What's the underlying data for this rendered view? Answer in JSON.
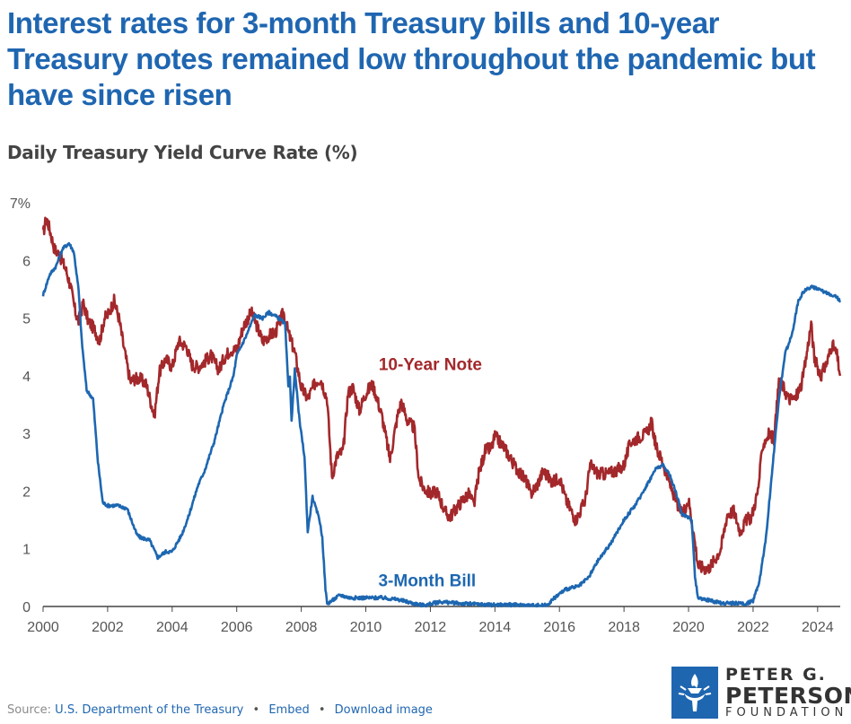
{
  "title": "Interest rates for 3-month Treasury bills and 10-year Treasury notes remained low throughout the pandemic but have since risen",
  "subtitle": "Daily Treasury Yield Curve Rate (%)",
  "footer": {
    "source_label": "Source:",
    "source_link": "U.S. Department of the Treasury",
    "embed": "Embed",
    "download": "Download image",
    "separator": "•"
  },
  "logo": {
    "line1": "PETER G.",
    "line2": "PETERSON",
    "line3": "FOUNDATION"
  },
  "chart_data": {
    "type": "line",
    "title": "Daily Treasury Yield Curve Rate (%)",
    "xlabel": "",
    "ylabel": "",
    "xlim": [
      2000,
      2024.7
    ],
    "ylim": [
      0,
      7
    ],
    "x_ticks": [
      2000,
      2002,
      2004,
      2006,
      2008,
      2010,
      2012,
      2014,
      2016,
      2018,
      2020,
      2022,
      2024
    ],
    "x_tick_labels": [
      "2000",
      "2002",
      "2004",
      "2006",
      "2008",
      "2010",
      "2012",
      "2014",
      "2016",
      "2018",
      "2020",
      "2022",
      "2024"
    ],
    "y_ticks": [
      0,
      1,
      2,
      3,
      4,
      5,
      6,
      7
    ],
    "y_tick_labels": [
      "0",
      "1",
      "2",
      "3",
      "4",
      "5",
      "6",
      "7%"
    ],
    "grid": false,
    "series": [
      {
        "name": "10-Year Note",
        "color": "#a3282b",
        "x": [
          2000.0,
          2000.1,
          2000.2,
          2000.35,
          2000.5,
          2000.7,
          2000.85,
          2001.0,
          2001.1,
          2001.25,
          2001.4,
          2001.6,
          2001.75,
          2001.9,
          2002.0,
          2002.2,
          2002.35,
          2002.5,
          2002.7,
          2002.85,
          2003.0,
          2003.2,
          2003.45,
          2003.6,
          2003.8,
          2004.0,
          2004.2,
          2004.45,
          2004.6,
          2004.8,
          2005.0,
          2005.2,
          2005.45,
          2005.6,
          2005.8,
          2006.0,
          2006.2,
          2006.45,
          2006.6,
          2006.8,
          2007.0,
          2007.2,
          2007.45,
          2007.6,
          2007.8,
          2008.0,
          2008.2,
          2008.45,
          2008.6,
          2008.8,
          2008.95,
          2009.1,
          2009.3,
          2009.45,
          2009.6,
          2009.8,
          2010.0,
          2010.2,
          2010.3,
          2010.5,
          2010.75,
          2010.9,
          2011.0,
          2011.1,
          2011.3,
          2011.5,
          2011.65,
          2011.8,
          2012.0,
          2012.2,
          2012.45,
          2012.6,
          2012.8,
          2013.0,
          2013.2,
          2013.35,
          2013.5,
          2013.7,
          2013.9,
          2014.0,
          2014.3,
          2014.6,
          2014.8,
          2015.0,
          2015.1,
          2015.3,
          2015.5,
          2015.8,
          2016.0,
          2016.2,
          2016.5,
          2016.6,
          2016.8,
          2016.95,
          2017.2,
          2017.5,
          2017.7,
          2017.9,
          2018.0,
          2018.2,
          2018.5,
          2018.7,
          2018.85,
          2019.0,
          2019.2,
          2019.4,
          2019.6,
          2019.8,
          2020.0,
          2020.15,
          2020.3,
          2020.6,
          2020.8,
          2021.0,
          2021.2,
          2021.4,
          2021.6,
          2021.8,
          2021.95,
          2022.15,
          2022.3,
          2022.5,
          2022.65,
          2022.8,
          2022.9,
          2023.1,
          2023.3,
          2023.5,
          2023.6,
          2023.8,
          2023.9,
          2024.1,
          2024.3,
          2024.45,
          2024.6,
          2024.7
        ],
        "values": [
          6.45,
          6.75,
          6.55,
          6.2,
          6.1,
          5.85,
          5.55,
          5.1,
          4.95,
          5.25,
          4.95,
          4.8,
          4.6,
          5.0,
          5.05,
          5.3,
          5.0,
          4.5,
          3.9,
          3.95,
          3.95,
          3.85,
          3.3,
          4.05,
          4.3,
          4.15,
          4.6,
          4.5,
          4.2,
          4.15,
          4.25,
          4.35,
          4.1,
          4.3,
          4.45,
          4.45,
          4.85,
          5.1,
          4.9,
          4.6,
          4.7,
          4.75,
          5.1,
          4.75,
          4.4,
          3.8,
          3.6,
          3.9,
          3.95,
          3.6,
          2.25,
          2.6,
          2.7,
          3.7,
          3.8,
          3.4,
          3.7,
          3.85,
          3.7,
          3.3,
          2.55,
          3.05,
          3.35,
          3.55,
          3.2,
          3.1,
          2.2,
          2.05,
          1.95,
          2.0,
          1.65,
          1.55,
          1.7,
          1.85,
          1.95,
          1.75,
          2.3,
          2.7,
          2.75,
          2.95,
          2.75,
          2.45,
          2.3,
          2.15,
          1.95,
          2.1,
          2.35,
          2.15,
          2.25,
          1.85,
          1.5,
          1.6,
          1.85,
          2.45,
          2.3,
          2.3,
          2.35,
          2.4,
          2.45,
          2.85,
          2.95,
          3.0,
          3.2,
          2.75,
          2.5,
          2.15,
          1.85,
          1.6,
          1.85,
          1.3,
          0.7,
          0.65,
          0.8,
          1.0,
          1.6,
          1.65,
          1.3,
          1.5,
          1.55,
          2.0,
          2.8,
          3.0,
          2.9,
          3.9,
          3.85,
          3.6,
          3.6,
          3.85,
          4.15,
          4.9,
          4.3,
          4.0,
          4.25,
          4.55,
          4.35,
          4.0
        ]
      },
      {
        "name": "3-Month Bill",
        "color": "#1d67b1",
        "x": [
          2000.0,
          2000.2,
          2000.4,
          2000.6,
          2000.8,
          2000.95,
          2001.1,
          2001.2,
          2001.35,
          2001.55,
          2001.7,
          2001.85,
          2002.0,
          2002.3,
          2002.6,
          2002.9,
          2003.0,
          2003.3,
          2003.55,
          2003.8,
          2004.0,
          2004.3,
          2004.5,
          2004.8,
          2005.0,
          2005.3,
          2005.6,
          2005.9,
          2006.0,
          2006.3,
          2006.55,
          2006.8,
          2007.0,
          2007.3,
          2007.5,
          2007.6,
          2007.65,
          2007.7,
          2007.8,
          2007.95,
          2008.1,
          2008.2,
          2008.35,
          2008.45,
          2008.55,
          2008.65,
          2008.75,
          2008.8,
          2008.95,
          2009.2,
          2009.5,
          2010.0,
          2010.5,
          2011.0,
          2011.5,
          2011.8,
          2012.3,
          2013.0,
          2013.8,
          2014.5,
          2015.0,
          2015.6,
          2015.95,
          2016.2,
          2016.6,
          2016.9,
          2017.2,
          2017.6,
          2018.0,
          2018.4,
          2018.8,
          2019.0,
          2019.2,
          2019.4,
          2019.6,
          2019.8,
          2020.0,
          2020.1,
          2020.2,
          2020.3,
          2021.0,
          2021.8,
          2022.0,
          2022.2,
          2022.4,
          2022.6,
          2022.8,
          2023.0,
          2023.2,
          2023.4,
          2023.55,
          2023.8,
          2024.2,
          2024.5,
          2024.7
        ],
        "values": [
          5.4,
          5.75,
          5.9,
          6.2,
          6.3,
          6.15,
          5.5,
          4.6,
          3.75,
          3.6,
          2.5,
          1.8,
          1.75,
          1.75,
          1.7,
          1.25,
          1.2,
          1.15,
          0.85,
          0.95,
          0.95,
          1.25,
          1.55,
          2.1,
          2.35,
          2.85,
          3.5,
          4.0,
          4.35,
          4.7,
          5.05,
          5.0,
          5.1,
          5.0,
          4.9,
          3.8,
          4.0,
          3.2,
          4.1,
          3.2,
          2.6,
          1.3,
          1.9,
          1.7,
          1.55,
          1.2,
          0.3,
          0.05,
          0.1,
          0.2,
          0.15,
          0.15,
          0.15,
          0.12,
          0.05,
          0.02,
          0.08,
          0.05,
          0.03,
          0.03,
          0.02,
          0.02,
          0.2,
          0.3,
          0.35,
          0.5,
          0.8,
          1.1,
          1.5,
          1.8,
          2.2,
          2.4,
          2.45,
          2.3,
          2.0,
          1.6,
          1.55,
          1.5,
          0.5,
          0.15,
          0.06,
          0.05,
          0.1,
          0.45,
          1.2,
          2.4,
          3.6,
          4.4,
          4.7,
          5.3,
          5.45,
          5.55,
          5.45,
          5.4,
          5.3
        ]
      }
    ],
    "annotations": [
      {
        "text": "10-Year Note",
        "x": 2012.0,
        "y": 4.1,
        "color": "#a3282b"
      },
      {
        "text": "3-Month Bill",
        "x": 2011.9,
        "y": 0.35,
        "color": "#1d67b1"
      }
    ]
  }
}
